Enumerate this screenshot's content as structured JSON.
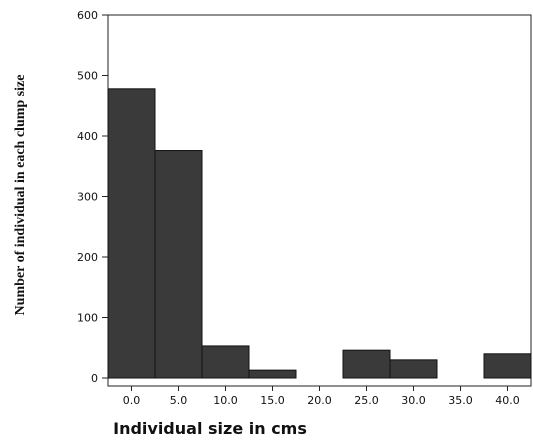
{
  "chart_data": {
    "type": "bar",
    "categories": [
      "0.0",
      "5.0",
      "10.0",
      "15.0",
      "20.0",
      "25.0",
      "30.0",
      "35.0",
      "40.0"
    ],
    "values": [
      478,
      376,
      53,
      13,
      0,
      46,
      30,
      0,
      40
    ],
    "xlabel": "Individual size in cms",
    "ylabel": "Number of individual in each clump size",
    "ylim": [
      0,
      600
    ],
    "yticks": [
      0,
      100,
      200,
      300,
      400,
      500,
      600
    ],
    "grid": false,
    "bar_color": "#3a3a3a"
  }
}
